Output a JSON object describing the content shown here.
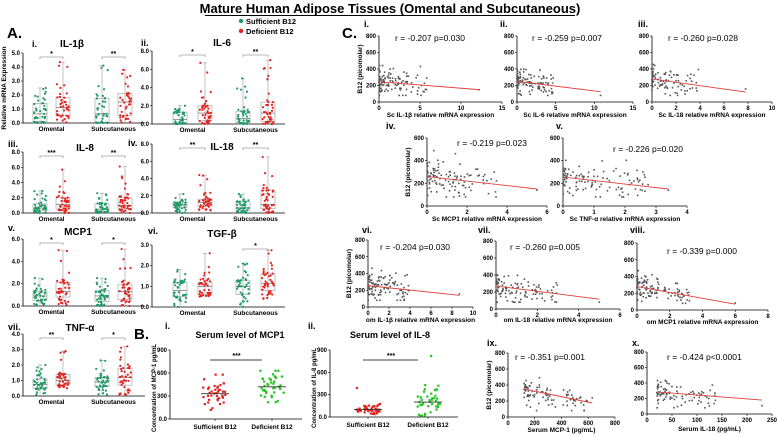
{
  "title": "Mature Human Adipose Tissues (Omental and Subcutaneous)",
  "legend": {
    "sufficient": "Sufficient B12",
    "deficient": "Deficient B12"
  },
  "panel_labels": {
    "A": "A.",
    "B": "B.",
    "C": "C."
  },
  "colors": {
    "sufficient": "#1f9a68",
    "deficient": "#e3221f",
    "serum_sufficient": "#e3221f",
    "serum_deficient": "#22c51e",
    "regression": "#e0403a",
    "box": "#9a9a9a"
  },
  "a_ylabel": "Relative mRNA Expression",
  "c_ylabel": "B12 (picomolar)",
  "chart_data": {
    "box_panels": [
      {
        "type": "box",
        "label": "i.",
        "title": "IL-1β",
        "ymax": 5,
        "yticks": [
          0,
          1,
          2,
          3,
          4,
          5
        ],
        "ytick_labels": [
          "0.0",
          "1.0",
          "2.0",
          "3.0",
          "4.0",
          "5.0"
        ],
        "categories": [
          "Omental",
          "Subcutaneous"
        ],
        "significance": [
          "*",
          "**"
        ],
        "groups": [
          {
            "status": "sufficient",
            "min": 0,
            "q1": 0.1,
            "median": 0.65,
            "q3": 1.4,
            "max": 2.5
          },
          {
            "status": "deficient",
            "min": 0.05,
            "q1": 0.55,
            "median": 1.1,
            "q3": 1.8,
            "max": 4.35
          },
          {
            "status": "sufficient",
            "min": 0,
            "q1": 0.05,
            "median": 0.65,
            "q3": 1.75,
            "max": 4.1
          },
          {
            "status": "deficient",
            "min": 0.05,
            "q1": 0.55,
            "median": 1.5,
            "q3": 2.1,
            "max": 3.8
          }
        ]
      },
      {
        "type": "box",
        "label": "ii.",
        "title": "IL-6",
        "ymax": 8,
        "yticks": [
          0,
          2,
          4,
          6,
          8
        ],
        "ytick_labels": [
          "0.0",
          "2.0",
          "4.0",
          "6.0",
          "8.0"
        ],
        "categories": [
          "Omental",
          "Subcutaneous"
        ],
        "significance": [
          "*",
          "**"
        ],
        "groups": [
          {
            "status": "sufficient",
            "min": 0,
            "q1": 0.1,
            "median": 0.5,
            "q3": 1.3,
            "max": 2.0
          },
          {
            "status": "deficient",
            "min": 0,
            "q1": 0.4,
            "median": 1.2,
            "q3": 2.0,
            "max": 6.7
          },
          {
            "status": "sufficient",
            "min": 0,
            "q1": 0.15,
            "median": 0.6,
            "q3": 1.4,
            "max": 5.0
          },
          {
            "status": "deficient",
            "min": 0,
            "q1": 0.3,
            "median": 1.2,
            "q3": 2.4,
            "max": 7.0
          }
        ]
      },
      {
        "type": "box",
        "label": "iii.",
        "title": "IL-8",
        "ymax": 8,
        "yticks": [
          0,
          2,
          4,
          6,
          8
        ],
        "ytick_labels": [
          "0.0",
          "2.0",
          "4.0",
          "6.0",
          "8.0"
        ],
        "categories": [
          "Omental",
          "Subcutaneous"
        ],
        "significance": [
          "***",
          "**"
        ],
        "groups": [
          {
            "status": "sufficient",
            "min": 0,
            "q1": 0.3,
            "median": 0.65,
            "q3": 1.2,
            "max": 2.9
          },
          {
            "status": "deficient",
            "min": 0,
            "q1": 0.5,
            "median": 1.1,
            "q3": 2.0,
            "max": 5.7
          },
          {
            "status": "sufficient",
            "min": 0,
            "q1": 0.2,
            "median": 0.5,
            "q3": 1.2,
            "max": 2.6
          },
          {
            "status": "deficient",
            "min": 0,
            "q1": 0.6,
            "median": 1.0,
            "q3": 2.0,
            "max": 6.1
          }
        ]
      },
      {
        "type": "box",
        "label": "iv.",
        "title": "IL-18",
        "ymax": 8,
        "yticks": [
          0,
          2,
          4,
          6,
          8
        ],
        "ytick_labels": [
          "0.0",
          "2.0",
          "4.0",
          "6.0",
          "8.0"
        ],
        "categories": [
          "Omental",
          "Subcutaneous"
        ],
        "significance": [
          "**",
          "**"
        ],
        "groups": [
          {
            "status": "sufficient",
            "min": 0,
            "q1": 0.6,
            "median": 0.9,
            "q3": 1.2,
            "max": 2.2
          },
          {
            "status": "deficient",
            "min": 0.3,
            "q1": 0.8,
            "median": 1.2,
            "q3": 1.6,
            "max": 4.4
          },
          {
            "status": "sufficient",
            "min": 0,
            "q1": 0.3,
            "median": 0.6,
            "q3": 1.3,
            "max": 2.2
          },
          {
            "status": "deficient",
            "min": 0,
            "q1": 0.5,
            "median": 1.0,
            "q3": 2.6,
            "max": 6.5
          }
        ]
      },
      {
        "type": "box",
        "label": "v.",
        "title": "MCP1",
        "ymax": 6,
        "yticks": [
          0,
          2,
          4,
          6
        ],
        "ytick_labels": [
          "0.0",
          "2.0",
          "4.0",
          "6.0"
        ],
        "categories": [
          "Omental",
          "Subcutaneous"
        ],
        "significance": [
          "*",
          "*"
        ],
        "groups": [
          {
            "status": "sufficient",
            "min": 0.1,
            "q1": 0.5,
            "median": 0.9,
            "q3": 1.3,
            "max": 2.5
          },
          {
            "status": "deficient",
            "min": 0.1,
            "q1": 0.8,
            "median": 1.3,
            "q3": 2.1,
            "max": 5.0
          },
          {
            "status": "sufficient",
            "min": 0,
            "q1": 0.4,
            "median": 0.9,
            "q3": 1.4,
            "max": 2.5
          },
          {
            "status": "deficient",
            "min": 0,
            "q1": 0.6,
            "median": 1.3,
            "q3": 1.9,
            "max": 5.1
          }
        ]
      },
      {
        "type": "box",
        "label": "vi.",
        "title": "TGF-β",
        "ymax": 3,
        "yticks": [
          0,
          1,
          2,
          3
        ],
        "ytick_labels": [
          "0.0",
          "1.0",
          "2.0",
          "3.0"
        ],
        "categories": [
          "Omental",
          "Subcutaneous"
        ],
        "significance": [
          null,
          "*"
        ],
        "groups": [
          {
            "status": "sufficient",
            "min": 0,
            "q1": 0.5,
            "median": 0.8,
            "q3": 1.2,
            "max": 1.8
          },
          {
            "status": "deficient",
            "min": 0.5,
            "q1": 0.6,
            "median": 1.0,
            "q3": 1.2,
            "max": 2.6
          },
          {
            "status": "sufficient",
            "min": 0,
            "q1": 0.6,
            "median": 1.0,
            "q3": 1.3,
            "max": 2.1
          },
          {
            "status": "deficient",
            "min": 0.4,
            "q1": 0.8,
            "median": 1.15,
            "q3": 1.6,
            "max": 2.75
          }
        ]
      },
      {
        "type": "box",
        "label": "vii.",
        "title": "TNF-α",
        "ymax": 4,
        "yticks": [
          0,
          1,
          2,
          3,
          4
        ],
        "ytick_labels": [
          "0.0",
          "1.0",
          "2.0",
          "3.0",
          "4.0"
        ],
        "categories": [
          "Omental",
          "Subcutaneous"
        ],
        "significance": [
          "**",
          "*"
        ],
        "groups": [
          {
            "status": "sufficient",
            "min": 0.1,
            "q1": 0.5,
            "median": 0.75,
            "q3": 1.1,
            "max": 2.0
          },
          {
            "status": "deficient",
            "min": 0.5,
            "q1": 0.7,
            "median": 1.0,
            "q3": 1.4,
            "max": 2.9
          },
          {
            "status": "sufficient",
            "min": 0.1,
            "q1": 0.6,
            "median": 0.9,
            "q3": 1.2,
            "max": 2.3
          },
          {
            "status": "deficient",
            "min": 0.1,
            "q1": 0.7,
            "median": 1.2,
            "q3": 1.8,
            "max": 3.2
          }
        ]
      }
    ],
    "serum_panels": [
      {
        "type": "scatter",
        "label": "i.",
        "title": "Serum level of MCP1",
        "ylabel": "Concentration of MCP-1 pg/mL",
        "ymax": 900,
        "yticks": [
          0,
          300,
          600,
          900
        ],
        "ytick_labels": [
          "0.0",
          "300",
          "600",
          "900"
        ],
        "categories": [
          "Sufficient B12",
          "Deficient B12"
        ],
        "significance": "***",
        "groups": [
          {
            "status": "serum_sufficient",
            "mean": 330,
            "min": 120,
            "max": 580,
            "n": 40
          },
          {
            "status": "serum_deficient",
            "mean": 420,
            "min": 220,
            "max": 630,
            "n": 40
          }
        ]
      },
      {
        "type": "scatter",
        "label": "ii.",
        "title": "Serum level of IL-8",
        "ylabel": "Concentration of IL-8 pg/mL",
        "ymax": 900,
        "yticks": [
          0,
          300,
          600,
          900
        ],
        "ytick_labels": [
          "0.0",
          "300",
          "600",
          "900"
        ],
        "categories": [
          "Sufficient B12",
          "Deficient B12"
        ],
        "significance": "***",
        "groups": [
          {
            "status": "serum_sufficient",
            "mean": 100,
            "min": 40,
            "max": 390,
            "n": 40
          },
          {
            "status": "serum_deficient",
            "mean": 200,
            "min": 20,
            "max": 820,
            "n": 40
          }
        ]
      }
    ],
    "correlation_panels": [
      {
        "type": "scatter",
        "label": "i.",
        "r_text": "r = -0.207  p=0.030",
        "xlabel": "Sc IL-1β relative mRNA expression",
        "xmax": 15,
        "xticks": [
          0,
          5,
          10,
          15
        ],
        "ymax": 800,
        "yticks": [
          0,
          200,
          400,
          600,
          800
        ],
        "fit": [
          [
            0,
            245
          ],
          [
            12.2,
            150
          ]
        ],
        "xspread": 6,
        "n": 110
      },
      {
        "type": "scatter",
        "label": "ii.",
        "r_text": "r = -0.259  p=0.007",
        "xlabel": "Sc IL-6 relative mRNA expression",
        "xmax": 15,
        "xticks": [
          0,
          5,
          10,
          15
        ],
        "ymax": 800,
        "yticks": [
          0,
          200,
          400,
          600,
          800
        ],
        "fit": [
          [
            0,
            250
          ],
          [
            10.8,
            125
          ]
        ],
        "xspread": 5,
        "n": 110
      },
      {
        "type": "scatter",
        "label": "iii.",
        "r_text": "r = -0.260  p=0.028",
        "xlabel": "Sc IL-18 relative mRNA expression",
        "xmax": 10,
        "xticks": [
          0,
          2,
          4,
          6,
          8,
          10
        ],
        "ymax": 800,
        "yticks": [
          0,
          200,
          400,
          600,
          800
        ],
        "fit": [
          [
            0,
            280
          ],
          [
            7.8,
            120
          ]
        ],
        "xspread": 4,
        "n": 90
      },
      {
        "type": "scatter",
        "label": "iv.",
        "r_text": "r = -0.219  p=0.023",
        "xlabel": "Sc MCP1 relative mRNA expression",
        "xmax": 6,
        "xticks": [
          0,
          2,
          4,
          6
        ],
        "ymax": 600,
        "yticks": [
          0,
          200,
          400,
          600
        ],
        "fit": [
          [
            0,
            260
          ],
          [
            5.5,
            150
          ]
        ],
        "xspread": 3.5,
        "n": 110
      },
      {
        "type": "scatter",
        "label": "v.",
        "r_text": "r = -0.226  p=0.020",
        "xlabel": "Sc TNF-α relative mRNA expression",
        "xmax": 4,
        "xticks": [
          0,
          1,
          2,
          3,
          4
        ],
        "ymax": 600,
        "yticks": [
          0,
          200,
          400,
          600
        ],
        "fit": [
          [
            0,
            255
          ],
          [
            3.4,
            150
          ]
        ],
        "xspread": 2.8,
        "n": 110
      },
      {
        "type": "scatter",
        "label": "vi.",
        "r_text": "r = -0.204  p=0.030",
        "xlabel": "om IL-1β relative mRNA expression",
        "xmax": 10,
        "xticks": [
          0,
          2,
          4,
          6,
          8,
          10
        ],
        "ymax": 800,
        "yticks": [
          0,
          200,
          400,
          600,
          800
        ],
        "fit": [
          [
            0,
            255
          ],
          [
            8.7,
            140
          ]
        ],
        "xspread": 4,
        "n": 110
      },
      {
        "type": "scatter",
        "label": "vii.",
        "r_text": "r = -0.260  p=0.005",
        "xlabel": "om IL-18 relative mRNA expression",
        "xmax": 6,
        "xticks": [
          0,
          2,
          4,
          6
        ],
        "ymax": 800,
        "yticks": [
          0,
          200,
          400,
          600,
          800
        ],
        "fit": [
          [
            0,
            270
          ],
          [
            5,
            115
          ]
        ],
        "xspread": 3,
        "n": 110
      },
      {
        "type": "scatter",
        "label": "viii.",
        "r_text": "r = -0.339  p=0.000",
        "xlabel": "om MCP1 relative mRNA expression",
        "xmax": 8,
        "xticks": [
          0,
          2,
          4,
          6,
          8
        ],
        "ymax": 800,
        "yticks": [
          0,
          200,
          400,
          600,
          800
        ],
        "fit": [
          [
            0,
            280
          ],
          [
            6,
            70
          ]
        ],
        "xspread": 3.2,
        "n": 120
      },
      {
        "type": "scatter",
        "label": "ix.",
        "r_text": "r = -0.351  p=0.001",
        "xlabel": "Serum MCP-1 (pg/mL)",
        "xmax": 800,
        "xmin": 0,
        "xticks": [
          0,
          200,
          400,
          600,
          800
        ],
        "ymax": 800,
        "yticks": [
          0,
          200,
          400,
          600,
          800
        ],
        "fit": [
          [
            120,
            350
          ],
          [
            630,
            175
          ]
        ],
        "xstart": 120,
        "xspread": 510,
        "n": 90
      },
      {
        "type": "scatter",
        "label": "x.",
        "r_text": "r = -0.424  p<0.0001",
        "xlabel": "Serum IL-18 (pg/mL)",
        "xmax": 250,
        "xticks": [
          0,
          50,
          100,
          150,
          200,
          250
        ],
        "ymax": 800,
        "yticks": [
          0,
          200,
          400,
          600,
          800
        ],
        "fit": [
          [
            20,
            285
          ],
          [
            230,
            180
          ]
        ],
        "xstart": 20,
        "xspread": 120,
        "n": 90
      }
    ]
  }
}
